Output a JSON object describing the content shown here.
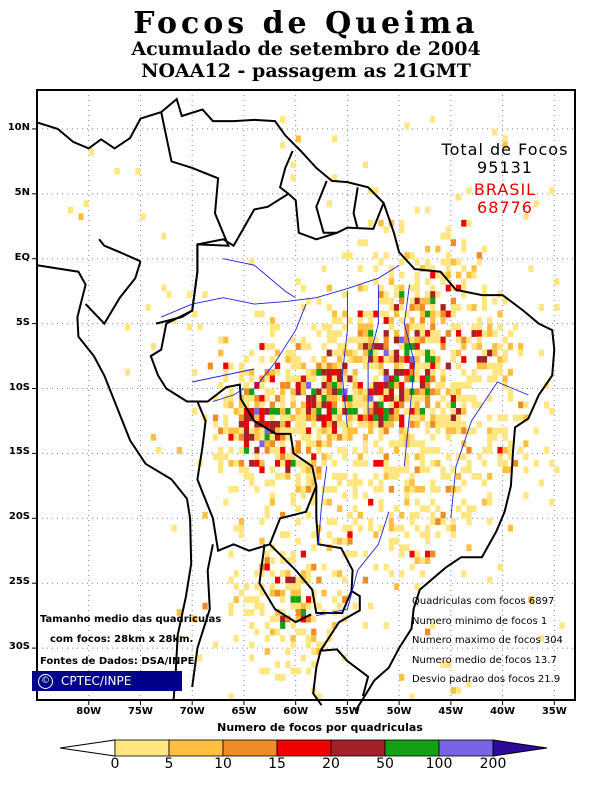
{
  "header": {
    "title": "Focos de Queima",
    "subtitle": "Acumulado de setembro de 2004",
    "satellite": "NOAA12 - passagem as 21GMT"
  },
  "totals": {
    "label": "Total de Focos",
    "total": "95131",
    "brasil_label": "BRASIL",
    "brasil": "68776",
    "brasil_color": "#e60000"
  },
  "axes": {
    "lat_labels": [
      "10N",
      "5N",
      "EQ",
      "5S",
      "10S",
      "15S",
      "20S",
      "25S",
      "30S"
    ],
    "lon_labels": [
      "80W",
      "75W",
      "70W",
      "65W",
      "60W",
      "55W",
      "50W",
      "45W",
      "40W",
      "35W"
    ],
    "lat_range": [
      -34,
      13
    ],
    "lon_range": [
      -85,
      -33
    ]
  },
  "stats": [
    "Quadriculas com focos 6897",
    "Numero minimo de focos 1",
    "Numero maximo de focos 304",
    "Numero medio de focos 13.7",
    "Desvio padrao dos focos 21.9"
  ],
  "notes": {
    "line1": "Tamanho medio das quadriculas",
    "line2": "com focos: 28km x 28km.",
    "source": "Fontes de Dados: DSA/INPE",
    "logo": "CPTEC/INPE",
    "logo_symbol": "©"
  },
  "colorbar": {
    "title": "Numero de focos por quadriculas",
    "ticks": [
      "0",
      "5",
      "10",
      "15",
      "20",
      "50",
      "100",
      "200"
    ],
    "colors": [
      "#ffe680",
      "#ffbf40",
      "#f08c28",
      "#f00000",
      "#a52028",
      "#14a014",
      "#7a64e6",
      "#2d0a9c"
    ],
    "class_values": [
      2,
      7,
      12,
      17,
      30,
      70,
      150,
      250
    ]
  }
}
